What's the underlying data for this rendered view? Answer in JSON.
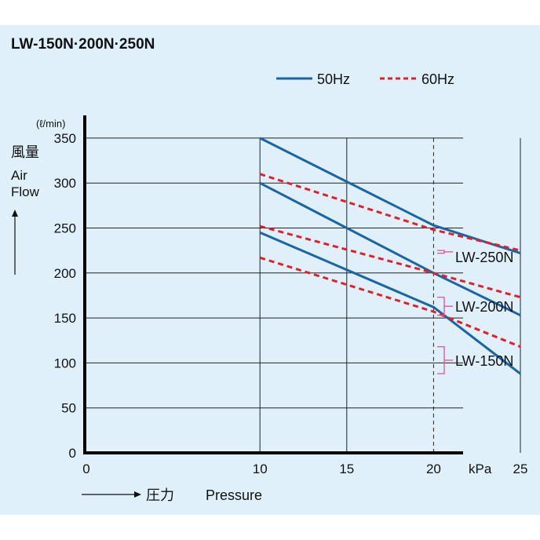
{
  "chart_data": {
    "type": "line",
    "title": "LW-150N·200N·250N",
    "unit_label": "(ℓ/min)",
    "ylabel_jp": "風量",
    "ylabel_en": [
      "Air",
      "Flow"
    ],
    "xlabel_jp": "圧力",
    "xlabel_en": "Pressure",
    "x_unit": "kPa",
    "xlim": [
      0,
      27
    ],
    "ylim": [
      0,
      350
    ],
    "xticks": [
      0,
      10,
      15,
      20,
      25
    ],
    "yticks": [
      0,
      50,
      100,
      150,
      200,
      250,
      300,
      350
    ],
    "grid": true,
    "legend": [
      {
        "label": "50Hz",
        "style": "solid",
        "color": "#1a64a8"
      },
      {
        "label": "60Hz",
        "style": "dashed",
        "color": "#e0202a"
      }
    ],
    "legend_position": "top-right",
    "bracket_color": "#e0509a",
    "series": [
      {
        "model": "LW-250N",
        "freq": "50Hz",
        "x": [
          10,
          20,
          25
        ],
        "y": [
          350,
          253,
          222
        ]
      },
      {
        "model": "LW-250N",
        "freq": "60Hz",
        "x": [
          10,
          20,
          25
        ],
        "y": [
          310,
          248,
          225
        ]
      },
      {
        "model": "LW-200N",
        "freq": "50Hz",
        "x": [
          10,
          20,
          25
        ],
        "y": [
          300,
          200,
          153
        ]
      },
      {
        "model": "LW-200N",
        "freq": "60Hz",
        "x": [
          10,
          20,
          25
        ],
        "y": [
          252,
          200,
          173
        ]
      },
      {
        "model": "LW-150N",
        "freq": "50Hz",
        "x": [
          10,
          20,
          25
        ],
        "y": [
          245,
          162,
          88
        ]
      },
      {
        "model": "LW-150N",
        "freq": "60Hz",
        "x": [
          10,
          20,
          25
        ],
        "y": [
          217,
          157,
          118
        ]
      }
    ],
    "model_labels": [
      "LW-250N",
      "LW-200N",
      "LW-150N"
    ]
  }
}
